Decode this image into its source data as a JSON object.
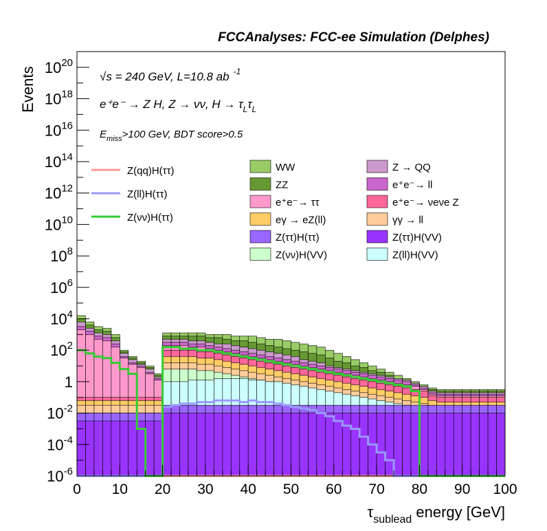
{
  "header": {
    "title": "FCCAnalyses: FCC-ee Simulation (Delphes)",
    "energy_line": "√s = 240 GeV, L=10.8 ab",
    "energy_exp": "-1",
    "process": "e⁺e⁻ → Z H, Z → νν, H → τ",
    "process_sub": "L",
    "selection": "E",
    "selection_sub": "miss",
    "selection_rest": ">100 GeV, BDT score>0.5"
  },
  "chart_data": {
    "type": "bar",
    "subtype": "stacked histogram with signal overlay lines",
    "xlabel": "τ",
    "xlabel_sub": "sublead",
    "xlabel_rest": " energy [GeV]",
    "ylabel": "Events",
    "xlim": [
      0,
      100
    ],
    "ylim": [
      1e-06,
      1e+21
    ],
    "log_y": true,
    "bin_width": 2,
    "x_ticks": [
      "0",
      "10",
      "20",
      "30",
      "40",
      "50",
      "60",
      "70",
      "80",
      "90",
      "100"
    ],
    "y_ticks": [
      {
        "value": 1e-06,
        "label": "10",
        "exp": "-6"
      },
      {
        "value": 0.0001,
        "label": "10",
        "exp": "-4"
      },
      {
        "value": 0.01,
        "label": "10",
        "exp": "-2"
      },
      {
        "value": 1,
        "label": "1",
        "exp": ""
      },
      {
        "value": 100.0,
        "label": "10",
        "exp": "2"
      },
      {
        "value": 10000.0,
        "label": "10",
        "exp": "4"
      },
      {
        "value": 1000000.0,
        "label": "10",
        "exp": "6"
      },
      {
        "value": 100000000.0,
        "label": "10",
        "exp": "8"
      },
      {
        "value": 10000000000.0,
        "label": "10",
        "exp": "10"
      },
      {
        "value": 1000000000000.0,
        "label": "10",
        "exp": "12"
      },
      {
        "value": 100000000000000.0,
        "label": "10",
        "exp": "14"
      },
      {
        "value": 1e+16,
        "label": "10",
        "exp": "16"
      },
      {
        "value": 1e+18,
        "label": "10",
        "exp": "18"
      },
      {
        "value": 1e+20,
        "label": "10",
        "exp": "20"
      }
    ],
    "stack_tops": [
      {
        "name": "WW",
        "color": "#99cc66",
        "log10": [
          4.2,
          3.8,
          3.5,
          3.4,
          3.0,
          2.0,
          1.6,
          1.3,
          1.0,
          0.5,
          3.1,
          3.1,
          3.1,
          3.1,
          3.1,
          3.0,
          3.0,
          3.0,
          2.9,
          2.9,
          2.9,
          2.8,
          2.7,
          2.7,
          2.6,
          2.5,
          2.4,
          2.3,
          2.2,
          2.0,
          1.8,
          1.6,
          1.4,
          1.2,
          1.0,
          0.8,
          0.6,
          0.4,
          0.2,
          0.0,
          -0.2,
          -0.4,
          -0.5,
          -0.5,
          -0.5,
          -0.5,
          -0.5,
          -0.5,
          -0.5,
          -0.5
        ]
      },
      {
        "name": "ZZ",
        "color": "#669933",
        "log10": [
          4.0,
          3.6,
          3.3,
          3.2,
          2.8,
          1.9,
          1.5,
          1.2,
          0.9,
          0.4,
          2.9,
          2.9,
          2.9,
          2.9,
          2.9,
          2.8,
          2.8,
          2.7,
          2.6,
          2.6,
          2.5,
          2.4,
          2.3,
          2.2,
          2.1,
          2.0,
          1.9,
          1.8,
          1.7,
          1.5,
          1.3,
          1.2,
          1.0,
          0.9,
          0.7,
          0.6,
          0.4,
          0.2,
          0.1,
          -0.1,
          -0.3,
          -0.5,
          -0.6,
          -0.6,
          -0.6,
          -0.6,
          -0.6,
          -0.6,
          -0.6,
          -0.6
        ]
      },
      {
        "name": "Z → QQ",
        "color": "#cc99cc",
        "log10": [
          3.8,
          3.4,
          3.1,
          3.0,
          2.6,
          1.8,
          1.4,
          1.1,
          0.8,
          0.3,
          2.7,
          2.7,
          2.7,
          2.6,
          2.6,
          2.5,
          2.4,
          2.4,
          2.3,
          2.2,
          2.1,
          2.0,
          1.9,
          1.8,
          1.7,
          1.6,
          1.4,
          1.3,
          1.2,
          1.0,
          0.9,
          0.8,
          0.7,
          0.6,
          0.5,
          0.4,
          0.3,
          0.2,
          0.1,
          -0.1,
          -0.3,
          -0.6,
          -0.7,
          -0.7,
          -0.7,
          -0.7,
          -0.7,
          -0.7,
          -0.7,
          -0.7
        ]
      },
      {
        "name": "e⁺e⁻ → ll",
        "color": "#cc66cc",
        "log10": [
          3.5,
          3.2,
          2.9,
          2.8,
          2.4,
          1.6,
          1.2,
          1.0,
          0.6,
          0.2,
          2.5,
          2.5,
          2.5,
          2.4,
          2.4,
          2.3,
          2.2,
          2.1,
          2.0,
          1.9,
          1.8,
          1.7,
          1.6,
          1.5,
          1.4,
          1.3,
          1.2,
          1.1,
          1.0,
          0.9,
          0.8,
          0.7,
          0.6,
          0.5,
          0.4,
          0.3,
          0.2,
          0.1,
          0.0,
          -0.2,
          -0.4,
          -0.7,
          -0.8,
          -0.8,
          -0.8,
          -0.8,
          -0.8,
          -0.8,
          -0.8,
          -0.8
        ]
      },
      {
        "name": "e⁺e⁻ → ττ",
        "color": "#ff99cc",
        "log10": [
          3.3,
          3.0,
          2.7,
          2.6,
          2.2,
          1.5,
          1.1,
          0.9,
          0.5,
          0.1,
          2.3,
          2.3,
          2.3,
          2.2,
          2.2,
          2.1,
          2.0,
          1.9,
          1.8,
          1.7,
          1.6,
          1.5,
          1.4,
          1.3,
          1.2,
          1.1,
          1.0,
          0.9,
          0.8,
          0.7,
          0.6,
          0.5,
          0.4,
          0.3,
          0.2,
          0.1,
          0.0,
          -0.1,
          -0.2,
          -0.3,
          -0.5,
          -0.8,
          -0.9,
          -0.9,
          -0.9,
          -0.9,
          -0.9,
          -0.9,
          -0.9,
          -0.9
        ]
      },
      {
        "name": "e⁺e⁻ → νeνe Z",
        "color": "#ff6699",
        "log10": [
          -1.0,
          -1.0,
          -1.0,
          -1.0,
          -1.0,
          -1.0,
          -1.0,
          -1.0,
          -1.0,
          -1.0,
          2.0,
          2.0,
          2.0,
          2.0,
          1.9,
          1.9,
          1.8,
          1.7,
          1.6,
          1.5,
          1.4,
          1.3,
          1.2,
          1.1,
          1.0,
          0.9,
          0.8,
          0.7,
          0.6,
          0.5,
          0.4,
          0.3,
          0.2,
          0.1,
          0.0,
          -0.1,
          -0.2,
          -0.3,
          -0.4,
          -0.5,
          -0.6,
          -0.9,
          -1.0,
          -1.0,
          -1.0,
          -1.0,
          -1.0,
          -1.0,
          -1.0,
          -1.0
        ]
      },
      {
        "name": "eγ → eZ(ll)",
        "color": "#ffcc66",
        "log10": [
          -1.2,
          -1.2,
          -1.2,
          -1.2,
          -1.2,
          -1.2,
          -1.2,
          -1.2,
          -1.2,
          -1.2,
          1.6,
          1.6,
          1.6,
          1.6,
          1.5,
          1.5,
          1.4,
          1.3,
          1.2,
          1.1,
          1.0,
          0.9,
          0.8,
          0.7,
          0.6,
          0.5,
          0.4,
          0.3,
          0.2,
          0.1,
          0.0,
          -0.1,
          -0.2,
          -0.3,
          -0.4,
          -0.5,
          -0.6,
          -0.7,
          -0.8,
          -0.9,
          -1.0,
          -1.2,
          -1.3,
          -1.3,
          -1.3,
          -1.3,
          -1.3,
          -1.3,
          -1.3,
          -1.3
        ]
      },
      {
        "name": "γγ → ll",
        "color": "#ffcc99",
        "log10": [
          -1.5,
          -1.5,
          -1.5,
          -1.5,
          -1.5,
          -1.5,
          -1.5,
          -1.5,
          -1.5,
          -1.5,
          1.2,
          1.2,
          1.2,
          1.2,
          1.1,
          1.1,
          1.0,
          0.9,
          0.8,
          0.7,
          0.6,
          0.5,
          0.4,
          0.3,
          0.2,
          0.1,
          0.0,
          -0.1,
          -0.2,
          -0.3,
          -0.4,
          -0.5,
          -0.6,
          -0.7,
          -0.8,
          -0.9,
          -1.0,
          -1.1,
          -1.2,
          -1.3,
          -1.4,
          -1.6,
          -1.7,
          -1.7,
          -1.7,
          -1.7,
          -1.7,
          -1.7,
          -1.7,
          -1.7
        ]
      },
      {
        "name": "Z(νν)H(VV)",
        "color": "#ccffcc",
        "log10": [
          -2.0,
          -2.0,
          -2.0,
          -2.0,
          -2.0,
          -2.0,
          -2.0,
          -2.0,
          -2.0,
          -2.0,
          0.8,
          0.8,
          0.8,
          0.8,
          0.7,
          0.7,
          0.6,
          0.5,
          0.4,
          0.3,
          0.2,
          0.1,
          0.0,
          -0.1,
          -0.2,
          -0.3,
          -0.4,
          -0.5,
          -0.6,
          -0.7,
          -0.8,
          -0.9,
          -1.0,
          -1.1,
          -1.2,
          -1.3,
          -1.4,
          -1.5,
          -1.6,
          -1.7,
          -1.8,
          -2.0,
          -2.1,
          -2.1,
          -2.1,
          -2.1,
          -2.1,
          -2.1,
          -2.1,
          -2.1
        ]
      },
      {
        "name": "Z(ll)H(VV)",
        "color": "#ccffff",
        "log10": [
          -2.5,
          -2.5,
          -2.5,
          -2.5,
          -2.5,
          -2.5,
          -2.5,
          -2.5,
          -2.5,
          -2.5,
          0.0,
          0.0,
          0.0,
          0.1,
          0.1,
          0.1,
          0.2,
          0.2,
          0.2,
          0.2,
          0.1,
          0.1,
          0.0,
          0.0,
          -0.1,
          -0.2,
          -0.3,
          -0.4,
          -0.5,
          -0.6,
          -0.7,
          -0.8,
          -0.9,
          -1.0,
          -1.1,
          -1.2,
          -1.3,
          -1.4,
          -1.5,
          -1.6,
          -1.7,
          -1.9,
          -2.0,
          -2.0,
          -2.0,
          -2.0,
          -2.0,
          -2.0,
          -2.0,
          -2.0
        ]
      },
      {
        "name": "Z(ττ)H(ττ)",
        "color": "#9966ff",
        "log10": [
          -2.0,
          -2.0,
          -2.0,
          -2.0,
          -2.0,
          -2.0,
          -2.0,
          -2.0,
          -2.0,
          -2.0,
          -1.5,
          -1.5,
          -1.5,
          -1.5,
          -1.5,
          -1.5,
          -1.5,
          -1.5,
          -1.5,
          -1.5,
          -1.5,
          -1.5,
          -1.5,
          -1.5,
          -1.5,
          -1.5,
          -1.5,
          -1.5,
          -1.5,
          -1.5,
          -1.5,
          -1.5,
          -1.5,
          -1.5,
          -1.5,
          -1.5,
          -1.5,
          -1.5,
          -1.5,
          -1.5,
          -1.5,
          -1.5,
          -1.5,
          -1.5,
          -1.5,
          -1.5,
          -1.5,
          -1.5,
          -1.5,
          -1.5
        ]
      },
      {
        "name": "Z(ττ)H(VV)",
        "color": "#9933ff",
        "log10": [
          -2.5,
          -2.5,
          -2.5,
          -2.5,
          -2.5,
          -2.5,
          -2.5,
          -2.5,
          -2.5,
          -2.5,
          -2.0,
          -2.0,
          -2.0,
          -2.0,
          -2.0,
          -2.0,
          -2.0,
          -2.0,
          -2.0,
          -2.0,
          -2.0,
          -2.0,
          -2.0,
          -2.0,
          -2.0,
          -2.0,
          -2.0,
          -2.0,
          -2.0,
          -2.0,
          -2.0,
          -2.0,
          -2.0,
          -2.0,
          -2.0,
          -2.0,
          -2.0,
          -2.0,
          -2.0,
          -2.0,
          -2.0,
          -2.0,
          -2.0,
          -2.0,
          -2.0,
          -2.0,
          -2.0,
          -2.0,
          -2.0,
          -2.0
        ]
      }
    ],
    "signal_lines": [
      {
        "name": "Z(qq)H(ττ)",
        "color": "#ff9999",
        "log10": [
          -6.0,
          -6.0,
          -6.0,
          -6.0,
          -6.0,
          -6.0,
          -6.0,
          -6.0,
          -6.0,
          -6.0,
          -6.0,
          -6.0,
          -6.0,
          -6.0,
          -6.0,
          -6.0,
          -6.0,
          -6.0,
          -6.0,
          -6.0,
          -6.0,
          -6.0,
          -6.0,
          -6.0,
          -6.0,
          -6.0,
          -6.0,
          -6.0,
          -6.0,
          -6.0,
          -6.0,
          -6.0,
          -6.0,
          -6.0,
          -6.0,
          -6.0,
          -6.0,
          -6.0,
          -6.0,
          -6.0,
          -6.0,
          -6.0,
          -6.0,
          -6.0,
          -6.0,
          -6.0,
          -6.0,
          -6.0,
          -6.0,
          -6.0
        ]
      },
      {
        "name": "Z(ll)H(ττ)",
        "color": "#9999ff",
        "log10": [
          -6.0,
          -6.0,
          -6.0,
          -6.0,
          -6.0,
          -6.0,
          -6.0,
          -6.0,
          -6.0,
          -6.0,
          -1.6,
          -1.5,
          -1.4,
          -1.4,
          -1.3,
          -1.3,
          -1.2,
          -1.2,
          -1.2,
          -1.3,
          -1.2,
          -1.3,
          -1.3,
          -1.4,
          -1.5,
          -1.6,
          -1.7,
          -1.8,
          -2.0,
          -2.2,
          -2.5,
          -2.8,
          -3.0,
          -3.5,
          -4.0,
          -4.5,
          -5.0,
          -6.0,
          -6.0,
          -6.0,
          -6.0,
          -6.0,
          -6.0,
          -6.0,
          -6.0,
          -6.0,
          -6.0,
          -6.0,
          -6.0,
          -6.0
        ]
      },
      {
        "name": "Z(νν)H(ττ)",
        "color": "#33cc33",
        "log10": [
          2.0,
          1.8,
          1.6,
          1.5,
          1.2,
          0.8,
          0.5,
          -3.0,
          -6.0,
          -6.0,
          2.2,
          2.2,
          2.1,
          2.1,
          2.0,
          2.0,
          1.9,
          1.8,
          1.7,
          1.6,
          1.5,
          1.4,
          1.3,
          1.2,
          1.1,
          1.0,
          0.9,
          0.8,
          0.7,
          0.6,
          0.5,
          0.4,
          0.3,
          0.2,
          0.1,
          0.0,
          -0.1,
          -0.2,
          -0.3,
          -0.6,
          -6.0,
          -6.0,
          -6.0,
          -6.0,
          -6.0,
          -6.0,
          -6.0,
          -6.0,
          -6.0,
          -6.0
        ]
      }
    ],
    "legend": {
      "lines": [
        {
          "name": "Z(qq)H(ττ)",
          "color": "#ff9999"
        },
        {
          "name": "Z(ll)H(ττ)",
          "color": "#9999ff"
        },
        {
          "name": "Z(νν)H(ττ)",
          "color": "#33cc33"
        }
      ],
      "col1": [
        {
          "name": "WW",
          "color": "#99cc66"
        },
        {
          "name": "ZZ",
          "color": "#669933"
        },
        {
          "name": "e⁺e⁻→ ττ",
          "color": "#ff99cc"
        },
        {
          "name": "eγ → eZ(ll)",
          "color": "#ffcc66"
        },
        {
          "name": "Z(ττ)H(ττ)",
          "color": "#9966ff"
        },
        {
          "name": "Z(νν)H(VV)",
          "color": "#ccffcc"
        }
      ],
      "col2": [
        {
          "name": "Z → QQ",
          "color": "#cc99cc"
        },
        {
          "name": "e⁺e⁻→ ll",
          "color": "#cc66cc"
        },
        {
          "name": "e⁺e⁻→ νeνe Z",
          "color": "#ff6699"
        },
        {
          "name": "γγ → ll",
          "color": "#ffcc99"
        },
        {
          "name": "Z(ττ)H(VV)",
          "color": "#9933ff"
        },
        {
          "name": "Z(ll)H(VV)",
          "color": "#ccffff"
        }
      ]
    }
  }
}
